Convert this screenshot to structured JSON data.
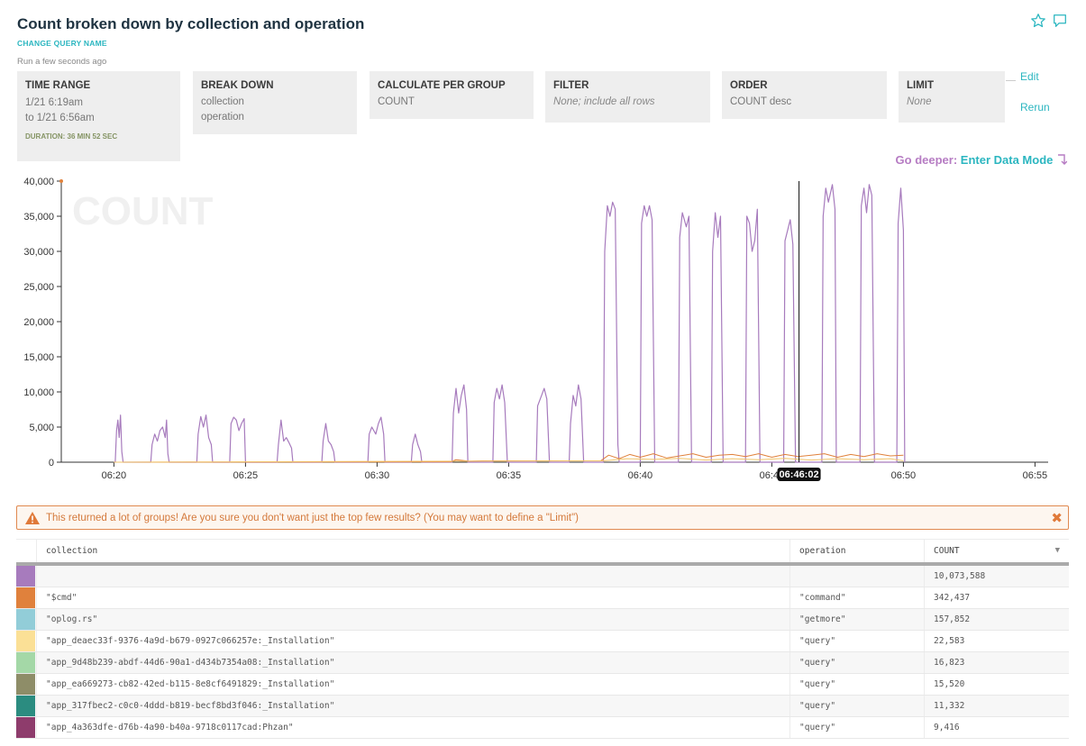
{
  "header": {
    "title": "Count broken down by collection and operation",
    "change_name": "CHANGE QUERY NAME",
    "run_ago": "Run a few seconds ago",
    "icons": [
      "star-icon",
      "comment-icon"
    ]
  },
  "query": {
    "time_range": {
      "label": "TIME RANGE",
      "from": "1/21 6:19am",
      "to": "to 1/21 6:56am",
      "duration": "DURATION: 36 MIN 52 SEC"
    },
    "break_down": {
      "label": "BREAK DOWN",
      "values": [
        "collection",
        "operation"
      ]
    },
    "calculate": {
      "label": "CALCULATE PER GROUP",
      "value": "COUNT"
    },
    "filter": {
      "label": "FILTER",
      "value": "None; include all rows"
    },
    "order": {
      "label": "ORDER",
      "value": "COUNT desc"
    },
    "limit": {
      "label": "LIMIT",
      "value": "None"
    },
    "edit": "Edit",
    "rerun": "Rerun"
  },
  "deeper": {
    "prefix": "Go deeper:",
    "link": "Enter Data Mode"
  },
  "chart_data": {
    "type": "line",
    "watermark": "COUNT",
    "ylim": [
      0,
      40000
    ],
    "yticks": [
      "0",
      "5,000",
      "10,000",
      "15,000",
      "20,000",
      "25,000",
      "30,000",
      "35,000",
      "40,000"
    ],
    "xticks": [
      "06:20",
      "06:25",
      "06:30",
      "06:35",
      "06:40",
      "06:45",
      "06:50",
      "06:55"
    ],
    "cursor_label": "06:46:02",
    "series": [
      {
        "color": "#a77bbd",
        "points": [
          [
            6.0,
            0
          ],
          [
            6.05,
            0
          ],
          [
            6.1,
            4500
          ],
          [
            6.15,
            6000
          ],
          [
            6.2,
            3500
          ],
          [
            6.25,
            6700
          ],
          [
            6.3,
            1500
          ],
          [
            6.35,
            0
          ],
          [
            7.4,
            0
          ],
          [
            7.45,
            2500
          ],
          [
            7.55,
            4000
          ],
          [
            7.65,
            3000
          ],
          [
            7.75,
            4500
          ],
          [
            7.85,
            5000
          ],
          [
            7.95,
            3500
          ],
          [
            8.0,
            6000
          ],
          [
            8.05,
            1200
          ],
          [
            8.1,
            0
          ],
          [
            9.15,
            0
          ],
          [
            9.2,
            4000
          ],
          [
            9.3,
            6500
          ],
          [
            9.4,
            5000
          ],
          [
            9.5,
            6700
          ],
          [
            9.6,
            3500
          ],
          [
            9.7,
            2500
          ],
          [
            9.75,
            0
          ],
          [
            10.4,
            0
          ],
          [
            10.45,
            5500
          ],
          [
            10.55,
            6400
          ],
          [
            10.65,
            6000
          ],
          [
            10.75,
            4500
          ],
          [
            10.85,
            5500
          ],
          [
            10.95,
            6200
          ],
          [
            11.0,
            0
          ],
          [
            12.2,
            0
          ],
          [
            12.25,
            2500
          ],
          [
            12.35,
            6000
          ],
          [
            12.45,
            3000
          ],
          [
            12.55,
            3500
          ],
          [
            12.65,
            2800
          ],
          [
            12.75,
            2000
          ],
          [
            12.8,
            0
          ],
          [
            13.9,
            0
          ],
          [
            13.95,
            3000
          ],
          [
            14.05,
            5500
          ],
          [
            14.15,
            3000
          ],
          [
            14.25,
            2500
          ],
          [
            14.35,
            1500
          ],
          [
            14.4,
            0
          ],
          [
            15.65,
            0
          ],
          [
            15.7,
            4000
          ],
          [
            15.8,
            5000
          ],
          [
            15.95,
            4000
          ],
          [
            16.05,
            5500
          ],
          [
            16.15,
            6400
          ],
          [
            16.25,
            4000
          ],
          [
            16.3,
            0
          ],
          [
            17.3,
            0
          ],
          [
            17.35,
            2500
          ],
          [
            17.45,
            4000
          ],
          [
            17.55,
            2500
          ],
          [
            17.65,
            1500
          ],
          [
            17.7,
            0
          ],
          [
            18.85,
            0
          ],
          [
            18.9,
            7000
          ],
          [
            19.0,
            10500
          ],
          [
            19.1,
            7000
          ],
          [
            19.2,
            9500
          ],
          [
            19.3,
            11000
          ],
          [
            19.4,
            7500
          ],
          [
            19.45,
            0
          ],
          [
            20.4,
            0
          ],
          [
            20.45,
            8500
          ],
          [
            20.55,
            10500
          ],
          [
            20.65,
            9000
          ],
          [
            20.75,
            11000
          ],
          [
            20.85,
            8500
          ],
          [
            20.95,
            0
          ],
          [
            22.05,
            0
          ],
          [
            22.1,
            8000
          ],
          [
            22.25,
            9500
          ],
          [
            22.35,
            10500
          ],
          [
            22.45,
            9000
          ],
          [
            22.55,
            0
          ],
          [
            23.3,
            0
          ],
          [
            23.35,
            5500
          ],
          [
            23.45,
            9500
          ],
          [
            23.55,
            8000
          ],
          [
            23.65,
            11000
          ],
          [
            23.75,
            9000
          ],
          [
            23.85,
            0
          ],
          [
            24.6,
            0
          ],
          [
            24.65,
            30000
          ],
          [
            24.75,
            36500
          ],
          [
            24.85,
            35000
          ],
          [
            24.95,
            37000
          ],
          [
            25.05,
            36000
          ],
          [
            25.15,
            2500
          ],
          [
            25.2,
            0
          ],
          [
            26.0,
            0
          ],
          [
            26.05,
            34000
          ],
          [
            26.15,
            36500
          ],
          [
            26.25,
            35000
          ],
          [
            26.35,
            36500
          ],
          [
            26.45,
            34500
          ],
          [
            26.55,
            0
          ],
          [
            27.45,
            0
          ],
          [
            27.5,
            32000
          ],
          [
            27.6,
            35500
          ],
          [
            27.75,
            33500
          ],
          [
            27.85,
            35000
          ],
          [
            27.95,
            0
          ],
          [
            28.7,
            0
          ],
          [
            28.75,
            30000
          ],
          [
            28.85,
            35500
          ],
          [
            28.95,
            32000
          ],
          [
            29.05,
            35000
          ],
          [
            29.15,
            0
          ],
          [
            30.0,
            0
          ],
          [
            30.05,
            35000
          ],
          [
            30.15,
            34000
          ],
          [
            30.25,
            30000
          ],
          [
            30.35,
            31500
          ],
          [
            30.45,
            36000
          ],
          [
            30.55,
            0
          ],
          [
            31.45,
            0
          ],
          [
            31.5,
            31500
          ],
          [
            31.6,
            33000
          ],
          [
            31.7,
            34500
          ],
          [
            31.8,
            31000
          ],
          [
            31.9,
            0
          ],
          [
            32.9,
            0
          ],
          [
            32.95,
            35000
          ],
          [
            33.05,
            39000
          ],
          [
            33.15,
            37000
          ],
          [
            33.3,
            39500
          ],
          [
            33.4,
            36000
          ],
          [
            33.45,
            0
          ],
          [
            34.35,
            0
          ],
          [
            34.4,
            36500
          ],
          [
            34.5,
            39000
          ],
          [
            34.6,
            35500
          ],
          [
            34.7,
            39500
          ],
          [
            34.8,
            38000
          ],
          [
            34.9,
            0
          ],
          [
            35.75,
            0
          ],
          [
            35.8,
            34000
          ],
          [
            35.9,
            39000
          ],
          [
            36.0,
            33000
          ],
          [
            36.05,
            0
          ]
        ]
      },
      {
        "color": "#e0813c",
        "points": [
          [
            6.0,
            0
          ],
          [
            18.8,
            50
          ],
          [
            19.0,
            350
          ],
          [
            19.5,
            150
          ],
          [
            20.0,
            200
          ],
          [
            24.5,
            200
          ],
          [
            24.8,
            1000
          ],
          [
            25.2,
            500
          ],
          [
            25.6,
            1100
          ],
          [
            26.0,
            700
          ],
          [
            26.5,
            1200
          ],
          [
            27.0,
            600
          ],
          [
            27.5,
            900
          ],
          [
            28.0,
            1200
          ],
          [
            28.5,
            700
          ],
          [
            29.0,
            1000
          ],
          [
            29.5,
            1100
          ],
          [
            30.0,
            800
          ],
          [
            30.5,
            1200
          ],
          [
            31.0,
            700
          ],
          [
            31.5,
            1100
          ],
          [
            32.0,
            800
          ],
          [
            32.5,
            1000
          ],
          [
            33.0,
            1200
          ],
          [
            33.5,
            700
          ],
          [
            34.0,
            1100
          ],
          [
            34.5,
            800
          ],
          [
            35.0,
            1200
          ],
          [
            35.5,
            900
          ],
          [
            36.0,
            1000
          ]
        ]
      },
      {
        "color": "#f2c46a",
        "points": [
          [
            6.0,
            0
          ],
          [
            24.6,
            200
          ],
          [
            25.5,
            500
          ],
          [
            26.5,
            400
          ],
          [
            27.5,
            550
          ],
          [
            28.5,
            300
          ],
          [
            29.5,
            500
          ],
          [
            30.5,
            350
          ],
          [
            31.5,
            550
          ],
          [
            32.5,
            300
          ],
          [
            33.5,
            500
          ],
          [
            34.5,
            350
          ],
          [
            35.5,
            500
          ],
          [
            36.0,
            200
          ]
        ]
      }
    ]
  },
  "warning": {
    "text": "This returned a lot of groups! Are you sure you don't want just the top few results? (You may want to define a \"Limit\")"
  },
  "table": {
    "columns": {
      "collection": "collection",
      "operation": "operation",
      "count": "COUNT"
    },
    "rows": [
      {
        "color": "#a77bbd",
        "collection": "",
        "operation": "",
        "count": "10,073,588"
      },
      {
        "color": "#e0813c",
        "collection": "\"$cmd\"",
        "operation": "\"command\"",
        "count": "342,437"
      },
      {
        "color": "#92cdd8",
        "collection": "\"oplog.rs\"",
        "operation": "\"getmore\"",
        "count": "157,852"
      },
      {
        "color": "#fbe096",
        "collection": "\"app_deaec33f-9376-4a9d-b679-0927c066257e:_Installation\"",
        "operation": "\"query\"",
        "count": "22,583"
      },
      {
        "color": "#a4d8a7",
        "collection": "\"app_9d48b239-abdf-44d6-90a1-d434b7354a08:_Installation\"",
        "operation": "\"query\"",
        "count": "16,823"
      },
      {
        "color": "#8e8d68",
        "collection": "\"app_ea669273-cb82-42ed-b115-8e8cf6491829:_Installation\"",
        "operation": "\"query\"",
        "count": "15,520"
      },
      {
        "color": "#2b8c80",
        "collection": "\"app_317fbec2-c0c0-4ddd-b819-becf8bd3f046:_Installation\"",
        "operation": "\"query\"",
        "count": "11,332"
      },
      {
        "color": "#8e3c6c",
        "collection": "\"app_4a363dfe-d76b-4a90-b40a-9718c0117cad:Phzan\"",
        "operation": "\"query\"",
        "count": "9,416"
      }
    ]
  }
}
